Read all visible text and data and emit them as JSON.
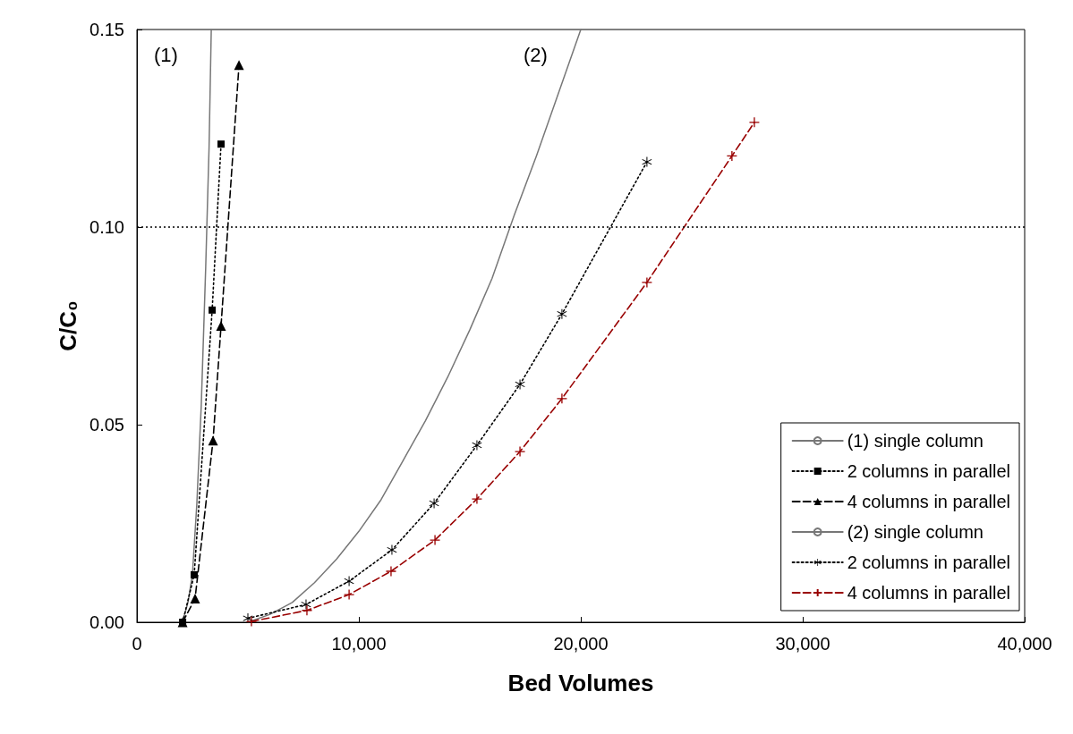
{
  "chart_data": {
    "type": "line",
    "xlabel": "Bed Volumes",
    "ylabel": "C/C₀",
    "xlim": [
      0,
      40000
    ],
    "xticks": [
      0,
      {
        "value": 10000,
        "label": "10,000"
      },
      {
        "value": 20000,
        "label": "20,000"
      },
      {
        "value": 30000,
        "label": "30,000"
      },
      {
        "value": 40000,
        "label": "40,000"
      }
    ],
    "ylim": [
      0,
      0.15
    ],
    "yticks": [
      {
        "value": 0,
        "label": "0.00"
      },
      {
        "value": 0.05,
        "label": "0.05"
      },
      {
        "value": 0.1,
        "label": "0.10"
      },
      {
        "value": 0.15,
        "label": "0.15"
      }
    ],
    "grid": false,
    "legend": "bottom right",
    "ref_lines": [
      {
        "axis": "y",
        "value": 0.1,
        "color": "#000000",
        "line_style": "dotted"
      }
    ],
    "annotations": [
      "(1)",
      "(2)"
    ],
    "series": [
      {
        "name": "(1) single column",
        "color": "#777777",
        "marker": "none",
        "line_style": "solid",
        "x": [
          2050,
          2300,
          2500,
          2700,
          2900,
          3100,
          3250,
          3350
        ],
        "values": [
          0,
          0.005,
          0.012,
          0.03,
          0.055,
          0.09,
          0.12,
          0.15
        ]
      },
      {
        "name": "2 columns in parallel",
        "color": "#000000",
        "marker": "square",
        "line_style": "dotted",
        "x": [
          2060,
          2580,
          3390,
          3790
        ],
        "values": [
          0,
          0.012,
          0.079,
          0.121
        ]
      },
      {
        "name": "4 columns in parallel",
        "color": "#000000",
        "marker": "triangle",
        "line_style": "dashed",
        "x": [
          2060,
          2620,
          3430,
          3790,
          4600
        ],
        "values": [
          0,
          0.006,
          0.046,
          0.075,
          0.141
        ]
      },
      {
        "name": "(2) single column",
        "color": "#777777",
        "marker": "none",
        "line_style": "solid",
        "x": [
          5000,
          6000,
          7000,
          8000,
          9000,
          10000,
          11000,
          12000,
          13000,
          14000,
          15000,
          16000,
          17000,
          18000,
          19000,
          20000
        ],
        "values": [
          0,
          0.002,
          0.005,
          0.01,
          0.016,
          0.023,
          0.031,
          0.041,
          0.051,
          0.062,
          0.074,
          0.087,
          0.103,
          0.118,
          0.134,
          0.15
        ]
      },
      {
        "name": "2 columns in parallel",
        "color": "#000000",
        "marker": "star",
        "line_style": "dotted",
        "x": [
          5000,
          7620,
          9560,
          11490,
          13390,
          15320,
          17260,
          19150,
          22980
        ],
        "values": [
          0.001,
          0.0045,
          0.0104,
          0.0183,
          0.0301,
          0.0448,
          0.0602,
          0.078,
          0.1165
        ]
      },
      {
        "name": "4 columns in parallel",
        "color": "#990000",
        "marker": "cross",
        "line_style": "dashed",
        "x": [
          5160,
          7660,
          9560,
          11450,
          13430,
          15320,
          17260,
          19150,
          22980,
          26810,
          27820
        ],
        "values": [
          0.0002,
          0.003,
          0.007,
          0.0129,
          0.0208,
          0.0312,
          0.0432,
          0.0566,
          0.086,
          0.118,
          0.1265
        ]
      }
    ]
  }
}
